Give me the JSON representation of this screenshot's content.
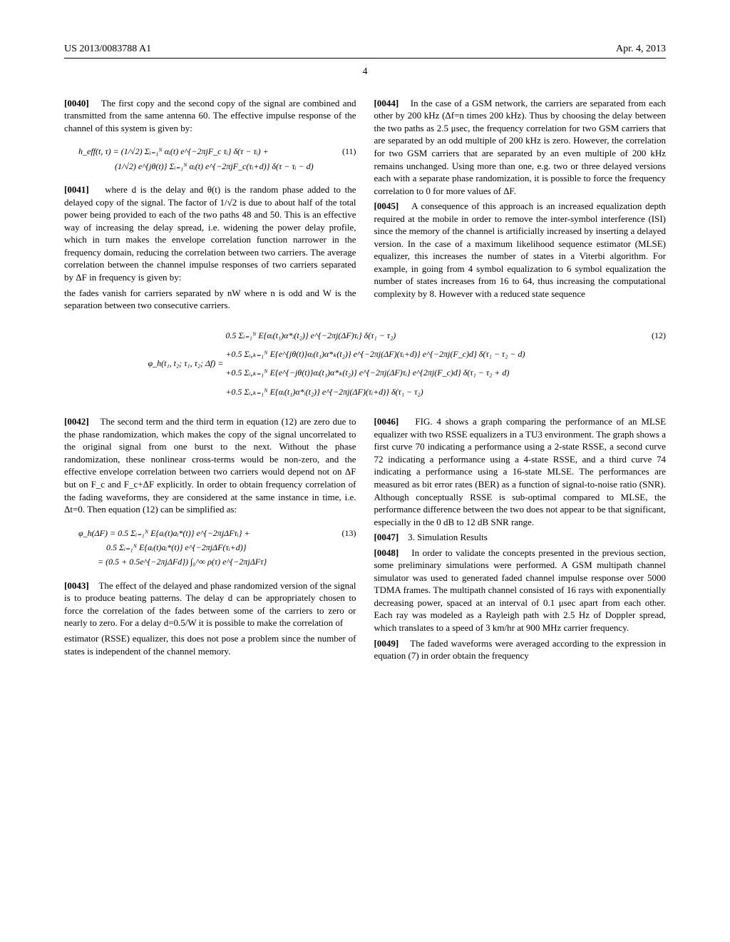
{
  "header": {
    "pubnum": "US 2013/0083788 A1",
    "pubdate": "Apr. 4, 2013",
    "page": "4"
  },
  "left_col": {
    "p0040": {
      "num": "[0040]",
      "text": "The first copy and the second copy of the signal are combined and transmitted from the same antenna 60. The effective impulse response of the channel of this system is given by:",
      "antenna_ref": "60"
    },
    "eq11": {
      "num": "(11)",
      "line1": "h_eff(t, τ) = (1/√2) Σᵢ₌₁ᴺ αᵢ(t) e^{−2πjF_c τᵢ} δ(τ − τᵢ) +",
      "line2": "(1/√2) e^{jθ(t)} Σᵢ₌₁ᴺ αᵢ(t) e^{−2πjF_c(τᵢ+d)} δ(τ − τᵢ − d)"
    },
    "p0041": {
      "num": "[0041]",
      "text": "where d is the delay and θ(t) is the random phase added to the delayed copy of the signal. The factor of 1/√2 is due to about half of the total power being provided to each of the two paths 48 and 50. This is an effective way of increasing the delay spread, i.e. widening the power delay profile, which in turn makes the envelope correlation function narrower in the frequency domain, reducing the correlation between two carriers. The average correlation between the channel impulse responses of two carriers separated by ΔF in frequency is given by:",
      "path_refs": [
        "48",
        "50"
      ]
    },
    "p0042": {
      "num": "[0042]",
      "text": "The second term and the third term in equation (12) are zero due to the phase randomization, which makes the copy of the signal uncorrelated to the original signal from one burst to the next. Without the phase randomization, these nonlinear cross-terms would be non-zero, and the effective envelope correlation between two carriers would depend not on ΔF but on F_c and F_c+ΔF explicitly. In order to obtain frequency correlation of the fading waveforms, they are considered at the same instance in time, i.e. Δt=0. Then equation (12) can be simplified as:"
    },
    "eq13": {
      "num": "(13)",
      "line1": "φ_h(ΔF) = 0.5 Σᵢ₌₁ᴺ E{aᵢ(t)aᵢ*(t)} e^{−2πjΔFτᵢ} +",
      "line2": "0.5 Σᵢ₌₁ᴺ E{aᵢ(t)aᵢ*(t)} e^{−2πjΔF(τᵢ+d)}",
      "line3": "= (0.5 + 0.5e^{−2πjΔFd}) ∫₀^∞ ρ(τ) e^{−2πjΔFτ}"
    },
    "p0043": {
      "num": "[0043]",
      "text": "The effect of the delayed and phase randomized version of the signal is to produce beating patterns. The delay d can be appropriately chosen to force the correlation of the fades between some of the carriers to zero or nearly to zero. For a delay d=0.5/W it is possible to make the correlation of"
    }
  },
  "eq12": {
    "num": "(12)",
    "lhs": "φ_h(t₁, t₂; τ₁, τ₂; Δf) =",
    "row1": "0.5  Σᵢ₌₁ᴺ  E{αᵢ(t₁)α*ᵢ(t₂)} e^{−2πj(ΔF)τᵢ} δ(τ₁ − τ₂)",
    "row2": "+0.5  Σᵢ,ₖ₌₁ᴺ  E{e^{jθ(t)}αᵢ(t₁)α*ₖ(t₂)} e^{−2πj(ΔF)(τᵢ+d)} e^{−2πj(F_c)d} δ(τ₁ − τ₂ − d)",
    "row3": "+0.5  Σᵢ,ₖ₌₁ᴺ  E{e^{−jθ(t)}αᵢ(t₁)α*ₖ(t₂)} e^{−2πj(ΔF)τᵢ} e^{2πj(F_c)d} δ(τ₁ − τ₂ + d)",
    "row4": "+0.5  Σᵢ,ₖ₌₁ᴺ  E{αᵢ(t₁)α*ᵢ(t₂)} e^{−2πj(ΔF)(τᵢ+d)} δ(τ₁ − τ₂)"
  },
  "right_col": {
    "p0043_cont": "the fades vanish for carriers separated by nW where n is odd and W is the separation between two consecutive carriers.",
    "p0044": {
      "num": "[0044]",
      "text": "In the case of a GSM network, the carriers are separated from each other by 200 kHz (Δf=n times 200 kHz). Thus by choosing the delay between the two paths as 2.5 μsec, the frequency correlation for two GSM carriers that are separated by an odd multiple of 200 kHz is zero. However, the correlation for two GSM carriers that are separated by an even multiple of 200 kHz remains unchanged. Using more than one, e.g. two or three delayed versions each with a separate phase randomization, it is possible to force the frequency correlation to 0 for more values of ΔF."
    },
    "p0045": {
      "num": "[0045]",
      "text": "A consequence of this approach is an increased equalization depth required at the mobile in order to remove the inter-symbol interference (ISI) since the memory of the channel is artificially increased by inserting a delayed version. In the case of a maximum likelihood sequence estimator (MLSE) equalizer, this increases the number of states in a Viterbi algorithm. For example, in going from 4 symbol equalization to 6 symbol equalization the number of states increases from 16 to 64, thus increasing the computational complexity by 8. However with a reduced state sequence"
    },
    "p0045_cont": "estimator (RSSE) equalizer, this does not pose a problem since the number of states is independent of the channel memory.",
    "p0046": {
      "num": "[0046]",
      "text": "FIG. 4 shows a graph comparing the performance of an MLSE equalizer with two RSSE equalizers in a TU3 environment. The graph shows a first curve 70 indicating a performance using a 2-state RSSE, a second curve 72 indicating a performance using a 4-state RSSE, and a third curve 74 indicating a performance using a 16-state MLSE. The performances are measured as bit error rates (BER) as a function of signal-to-noise ratio (SNR). Although conceptually RSSE is sub-optimal compared to MLSE, the performance difference between the two does not appear to be that significant, especially in the 0 dB to 12 dB SNR range.",
      "curve_refs": [
        "70",
        "72",
        "74"
      ],
      "fig_ref": "4"
    },
    "p0047": {
      "num": "[0047]",
      "text": "3. Simulation Results"
    },
    "p0048": {
      "num": "[0048]",
      "text": "In order to validate the concepts presented in the previous section, some preliminary simulations were performed. A GSM multipath channel simulator was used to generated faded channel impulse response over 5000 TDMA frames. The multipath channel consisted of 16 rays with exponentially decreasing power, spaced at an interval of 0.1 μsec apart from each other. Each ray was modeled as a Rayleigh path with 2.5 Hz of Doppler spread, which translates to a speed of 3 km/hr at 900 MHz carrier frequency."
    },
    "p0049": {
      "num": "[0049]",
      "text": "The faded waveforms were averaged according to the expression in equation (7) in order obtain the frequency"
    }
  }
}
